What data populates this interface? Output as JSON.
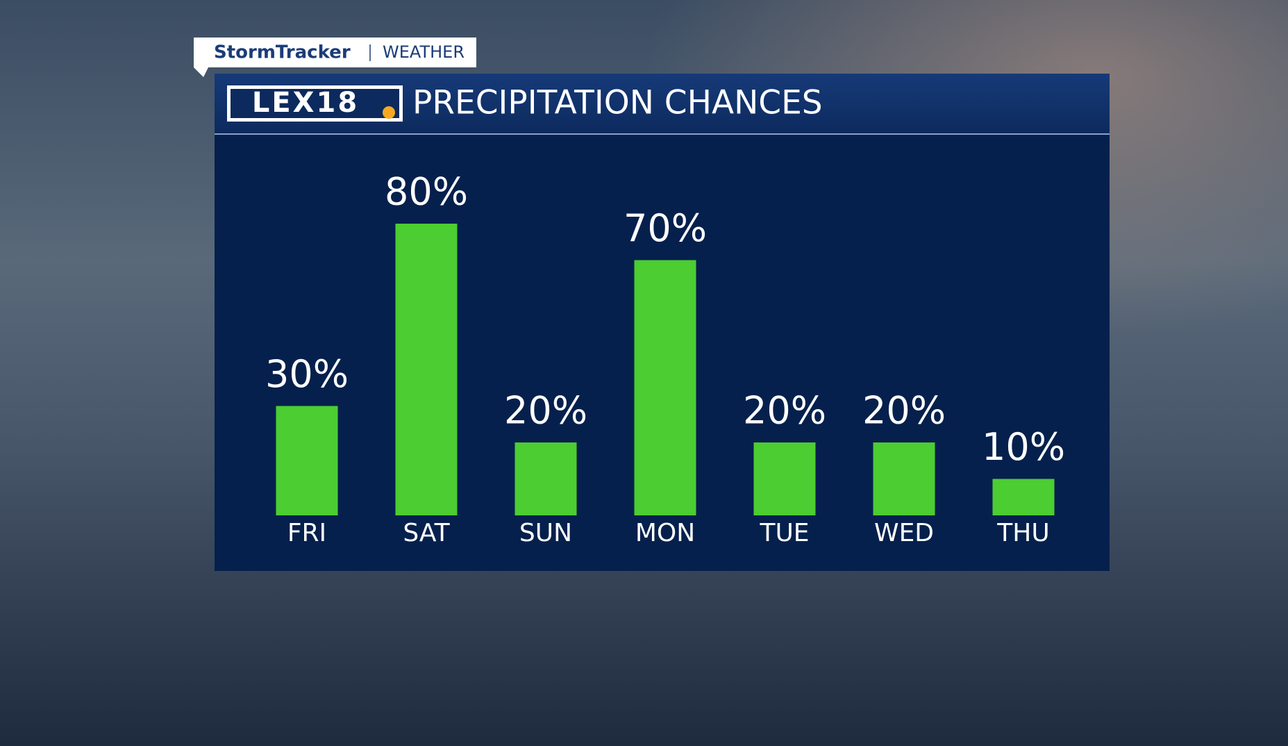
{
  "branding": {
    "brand": "StormTracker",
    "section": "WEATHER",
    "logo": "LEX18"
  },
  "chart_data": {
    "type": "bar",
    "title": "PRECIPITATION CHANCES",
    "categories": [
      "FRI",
      "SAT",
      "SUN",
      "MON",
      "TUE",
      "WED",
      "THU"
    ],
    "values": [
      30,
      80,
      20,
      70,
      20,
      20,
      10
    ],
    "value_labels": [
      "30%",
      "80%",
      "20%",
      "70%",
      "20%",
      "20%",
      "10%"
    ],
    "color": "#4ccd32"
  }
}
